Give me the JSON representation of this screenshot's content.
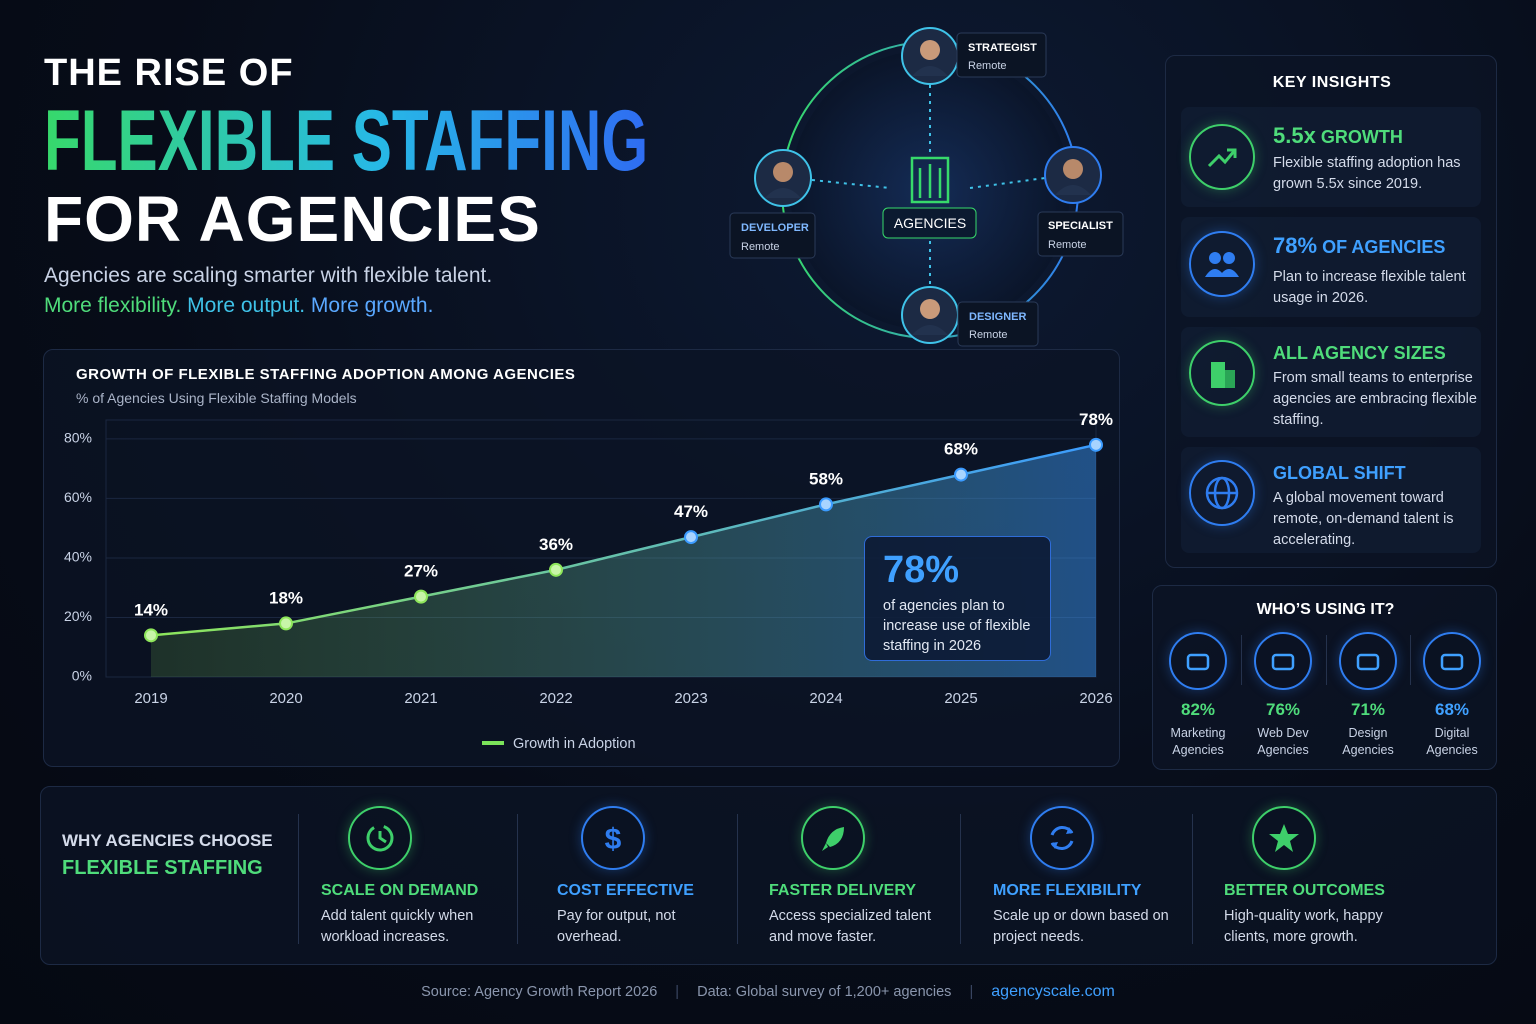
{
  "header": {
    "title_line1": "THE RISE OF",
    "title_line2": "FLEXIBLE STAFFING",
    "title_line3": "FOR AGENCIES",
    "subtitle": "Agencies are scaling smarter with flexible talent.",
    "taglines": [
      "More flexibility.",
      "More output.",
      "More growth."
    ]
  },
  "hub": {
    "center": "AGENCIES",
    "nodes": [
      {
        "role": "STRATEGIST",
        "location": "Remote"
      },
      {
        "role": "DEVELOPER",
        "location": "Remote"
      },
      {
        "role": "SPECIALIST",
        "location": "Remote"
      },
      {
        "role": "DESIGNER",
        "location": "Remote"
      }
    ]
  },
  "chart_data": {
    "type": "line",
    "title": "GROWTH OF FLEXIBLE STAFFING ADOPTION AMONG AGENCIES",
    "subtitle": "% of Agencies Using Flexible Staffing Models",
    "categories": [
      "2019",
      "2020",
      "2021",
      "2022",
      "2023",
      "2024",
      "2025",
      "2026"
    ],
    "series": [
      {
        "name": "Growth in Adoption",
        "color": "#7be35a",
        "gradient": [
          "#8ee65a",
          "#3b9bff"
        ],
        "values": [
          14,
          18,
          27,
          36,
          47,
          58,
          68,
          78
        ],
        "value_labels": [
          "14%",
          "18%",
          "27%",
          "36%",
          "47%",
          "58%",
          "68%",
          "78%"
        ]
      }
    ],
    "ylim": [
      0,
      85
    ],
    "yticks": [
      {
        "value": 0,
        "label": "0%"
      },
      {
        "value": 20,
        "label": "20%"
      },
      {
        "value": 40,
        "label": "40%"
      },
      {
        "value": 60,
        "label": "60%"
      },
      {
        "value": 80,
        "label": "80%"
      }
    ],
    "grid": true,
    "annotation": {
      "highlight": "78%",
      "text": "of agencies plan to increase use of flexible staffing in 2026"
    }
  },
  "insights": {
    "title": "KEY INSIGHTS",
    "items": [
      {
        "highlight": "5.5x",
        "rest": "GROWTH",
        "text": "Flexible staffing adoption has grown 5.5x since 2019."
      },
      {
        "highlight": "78%",
        "rest": "OF AGENCIES",
        "text": "Plan to increase flexible talent usage in 2026."
      },
      {
        "highlight": "ALL AGENCY SIZES",
        "rest": "",
        "text": "From small teams to enterprise agencies are embracing flexible staffing."
      },
      {
        "highlight": "GLOBAL SHIFT",
        "rest": "",
        "text": "A global movement toward remote, on-demand talent is accelerating."
      }
    ]
  },
  "usage": {
    "title": "WHO’S USING IT?",
    "items": [
      {
        "percent": "82%",
        "label": "Marketing Agencies"
      },
      {
        "percent": "76%",
        "label": "Web Dev Agencies"
      },
      {
        "percent": "71%",
        "label": "Design Agencies"
      },
      {
        "percent": "68%",
        "label": "Digital Agencies"
      }
    ]
  },
  "reasons": {
    "title_line1": "WHY AGENCIES CHOOSE",
    "title_line2": "FLEXIBLE STAFFING",
    "items": [
      {
        "title": "SCALE ON DEMAND",
        "text": "Add talent quickly when workload increases."
      },
      {
        "title": "COST EFFECTIVE",
        "text": "Pay for output, not overhead."
      },
      {
        "title": "FASTER DELIVERY",
        "text": "Access specialized talent and move faster."
      },
      {
        "title": "MORE FLEXIBILITY",
        "text": "Scale up or down based on project needs."
      },
      {
        "title": "BETTER OUTCOMES",
        "text": "High-quality work, happy clients, more growth."
      }
    ]
  },
  "footer": {
    "source": "Source: Agency Growth Report 2026",
    "data": "Data: Global survey of 1,200+ agencies",
    "site": "agencyscale.com"
  }
}
